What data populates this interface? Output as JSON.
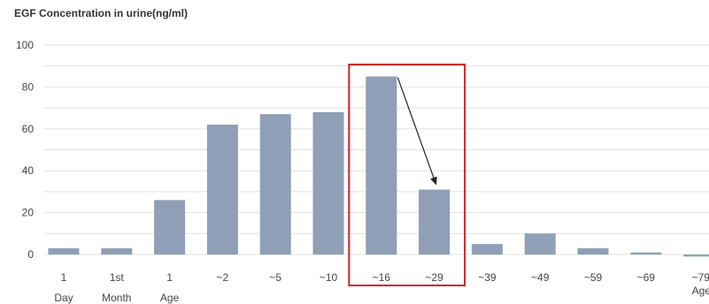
{
  "chart_data": {
    "type": "bar",
    "title": "EGF Concentration in urine(ng/ml)",
    "categories": [
      {
        "line1": "1",
        "line2": "Day"
      },
      {
        "line1": "1st",
        "line2": "Month"
      },
      {
        "line1": "1",
        "line2": "Age"
      },
      {
        "line1": "~2",
        "line2": ""
      },
      {
        "line1": "~5",
        "line2": ""
      },
      {
        "line1": "~10",
        "line2": ""
      },
      {
        "line1": "~16",
        "line2": ""
      },
      {
        "line1": "~29",
        "line2": ""
      },
      {
        "line1": "~39",
        "line2": ""
      },
      {
        "line1": "~49",
        "line2": ""
      },
      {
        "line1": "~59",
        "line2": ""
      },
      {
        "line1": "~69",
        "line2": ""
      },
      {
        "line1": "~79",
        "line2": "Age"
      }
    ],
    "values": [
      3,
      3,
      26,
      62,
      67,
      68,
      85,
      31,
      5,
      10,
      3,
      1,
      -1
    ],
    "ylim": [
      0,
      100
    ],
    "yticks": [
      0,
      20,
      40,
      60,
      80,
      100
    ],
    "grid": true,
    "bar_color": "#8f9fb7",
    "grid_color": "#e2e2e2",
    "highlight": {
      "from_index": 6,
      "to_index": 7,
      "color": "#d21f25"
    },
    "arrow": {
      "from_index": 6,
      "to_index": 7,
      "color": "#222222"
    }
  }
}
